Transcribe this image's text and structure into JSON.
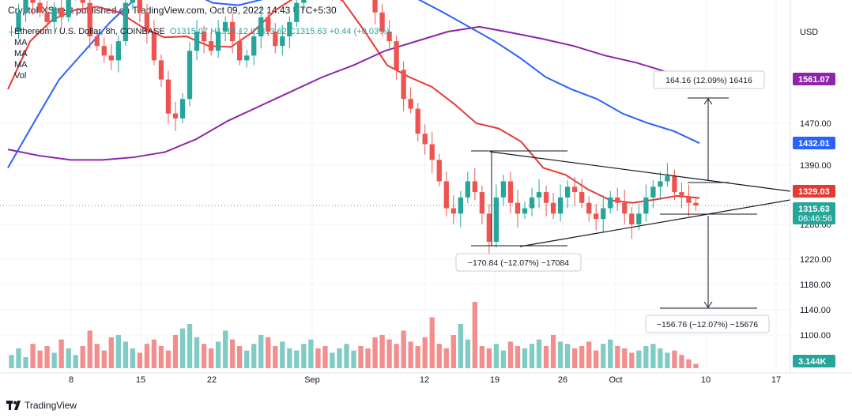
{
  "publisher": "CryptoFXStreet published on TradingView.com, Oct 09, 2022 14:43 UTC+5:30",
  "legend": {
    "symbol": "Ethereum / U.S. Dollar, 8h, COINBASE",
    "ohlc": "O1315.07 H1318.12 L1313.62 C1315.63 +0.44 (+0.03%)",
    "indicators": [
      "MA",
      "MA",
      "MA",
      "Vol"
    ]
  },
  "footer": {
    "brand": "TradingView"
  },
  "colors": {
    "up": "#26a69a",
    "down": "#ef5350",
    "vol_up": "#80cbc4",
    "vol_down": "#f28e8e",
    "ma_fast": "#e53935",
    "ma_mid": "#2962ff",
    "ma_slow": "#8e24aa",
    "trendline": "#131722"
  },
  "chart_data": {
    "type": "candlestick",
    "title": "Ethereum / U.S. Dollar, 8h, COINBASE",
    "currency": "USD",
    "y_ticks": [
      1100.0,
      1140.0,
      1180.0,
      1220.0,
      1280.0,
      1390.0,
      1470.0
    ],
    "x_ticks": [
      "8",
      "15",
      "22",
      "Sep",
      "12",
      "19",
      "26",
      "Oct",
      "10",
      "17"
    ],
    "price_badges": [
      {
        "value": "1561.07",
        "color": "#8e24aa"
      },
      {
        "value": "1432.01",
        "color": "#2962ff"
      },
      {
        "value": "1329.03",
        "color": "#e53935"
      },
      {
        "value": "1315.63",
        "sub": "06:46:56",
        "color": "#26a69a"
      },
      {
        "value": "3.144K",
        "color": "#26a69a"
      }
    ],
    "last_price": 1315.63,
    "annotations": [
      "164.16 (12.09%) 16416",
      "−170.84 (−12.07%) −17084",
      "−156.76 (−12.07%) −15676"
    ],
    "series": [
      {
        "name": "MA",
        "values": [
          1540,
          1640,
          1685,
          1705,
          1712,
          1700,
          1670,
          1648,
          1650,
          1630,
          1628,
          1660,
          1705,
          1735,
          1745,
          1725,
          1660,
          1590,
          1565,
          1545,
          1510,
          1470,
          1460,
          1435,
          1385,
          1372,
          1345,
          1325,
          1320,
          1326,
          1333,
          1329
        ]
      },
      {
        "name": "MA",
        "values": [
          1385,
          1470,
          1560,
          1620,
          1680,
          1730,
          1760,
          1745,
          1720,
          1715,
          1728,
          1748,
          1755,
          1750,
          1742,
          1735,
          1728,
          1700,
          1670,
          1640,
          1605,
          1565,
          1540,
          1520,
          1490,
          1470,
          1455,
          1432
        ]
      },
      {
        "name": "MA",
        "values": [
          1420,
          1408,
          1400,
          1400,
          1405,
          1415,
          1440,
          1475,
          1505,
          1535,
          1565,
          1590,
          1620,
          1640,
          1660,
          1670,
          1658,
          1645,
          1630,
          1610,
          1595,
          1575,
          1561
        ]
      }
    ],
    "price_path": [
      1660,
      1700,
      1740,
      1720,
      1700,
      1680,
      1710,
      1690,
      1740,
      1770,
      1720,
      1650,
      1630,
      1610,
      1600,
      1640,
      1720,
      1760,
      1700,
      1660,
      1600,
      1560,
      1490,
      1480,
      1520,
      1620,
      1660,
      1640,
      1620,
      1660,
      1680,
      1640,
      1600,
      1610,
      1650,
      1690,
      1660,
      1630,
      1650,
      1680,
      1720,
      1780,
      1800,
      1760,
      1740,
      1770,
      1790,
      1800,
      1810,
      1790,
      1760,
      1700,
      1660,
      1640,
      1580,
      1520,
      1500,
      1450,
      1430,
      1400,
      1360,
      1310,
      1300,
      1330,
      1360,
      1340,
      1300,
      1250,
      1330,
      1360,
      1320,
      1300,
      1310,
      1330,
      1340,
      1320,
      1300,
      1330,
      1350,
      1340,
      1320,
      1300,
      1290,
      1310,
      1330,
      1320,
      1300,
      1280,
      1300,
      1330,
      1350,
      1360,
      1370,
      1340,
      1330,
      1320,
      1315
    ],
    "volume": [
      12,
      18,
      10,
      22,
      16,
      20,
      14,
      26,
      18,
      12,
      20,
      34,
      22,
      16,
      28,
      30,
      24,
      18,
      14,
      22,
      26,
      20,
      16,
      30,
      36,
      40,
      28,
      22,
      18,
      24,
      34,
      26,
      20,
      16,
      22,
      30,
      28,
      20,
      24,
      18,
      16,
      22,
      26,
      18,
      20,
      14,
      18,
      22,
      16,
      20,
      18,
      28,
      30,
      26,
      22,
      34,
      24,
      20,
      28,
      46,
      22,
      18,
      30,
      40,
      26,
      60,
      20,
      18,
      22,
      16,
      24,
      20,
      18,
      22,
      26,
      20,
      30,
      24,
      22,
      18,
      20,
      24,
      16,
      22,
      26,
      20,
      18,
      14,
      16,
      20,
      22,
      18,
      14,
      16,
      12,
      8,
      4
    ]
  }
}
